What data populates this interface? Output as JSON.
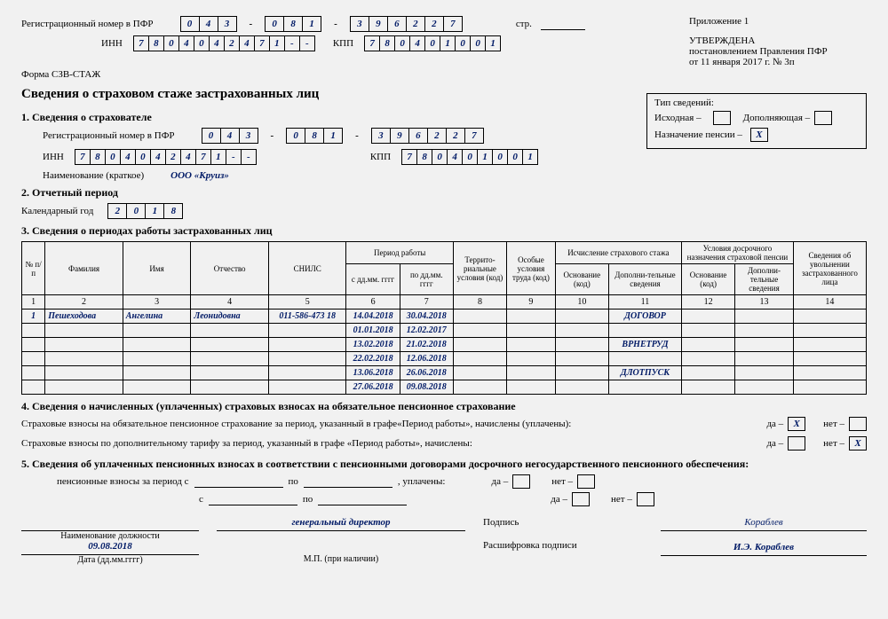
{
  "header": {
    "reg_label": "Регистрационный номер в ПФР",
    "reg1": [
      "0",
      "4",
      "3"
    ],
    "reg2": [
      "0",
      "8",
      "1"
    ],
    "reg3": [
      "3",
      "9",
      "6",
      "2",
      "2",
      "7"
    ],
    "page_label": "стр.",
    "inn_label": "ИНН",
    "inn": [
      "7",
      "8",
      "0",
      "4",
      "0",
      "4",
      "2",
      "4",
      "7",
      "1",
      "-",
      "-"
    ],
    "kpp_label": "КПП",
    "kpp": [
      "7",
      "8",
      "0",
      "4",
      "0",
      "1",
      "0",
      "0",
      "1"
    ],
    "appendix": "Приложение 1",
    "approved": "УТВЕРЖДЕНА",
    "decree": "постановлением Правления ПФР",
    "date": "от 11 января 2017 г. № 3п",
    "form_code": "Форма СЗВ-СТАЖ",
    "main_title": "Сведения о страховом стаже застрахованных лиц"
  },
  "section1": {
    "title": "1. Сведения о страхователе",
    "reg_label": "Регистрационный номер в ПФР",
    "reg1": [
      "0",
      "4",
      "3"
    ],
    "reg2": [
      "0",
      "8",
      "1"
    ],
    "reg3": [
      "3",
      "9",
      "6",
      "2",
      "2",
      "7"
    ],
    "inn_label": "ИНН",
    "inn": [
      "7",
      "8",
      "0",
      "4",
      "0",
      "4",
      "2",
      "4",
      "7",
      "1",
      "-",
      "-"
    ],
    "kpp_label": "КПП",
    "kpp": [
      "7",
      "8",
      "0",
      "4",
      "0",
      "1",
      "0",
      "0",
      "1"
    ],
    "name_label": "Наименование (краткое)",
    "name_value": "ООО «Круиз»"
  },
  "type_box": {
    "title": "Тип сведений:",
    "initial": "Исходная –",
    "supplement": "Дополняющая –",
    "pension": "Назначение пенсии –",
    "pension_mark": "X"
  },
  "section2": {
    "title": "2. Отчетный период",
    "year_label": "Календарный год",
    "year": [
      "2",
      "0",
      "1",
      "8"
    ]
  },
  "section3": {
    "title": "3. Сведения о периодах работы застрахованных лиц",
    "headers": {
      "num": "№ п/п",
      "surname": "Фамилия",
      "name": "Имя",
      "patronymic": "Отчество",
      "snils": "СНИЛС",
      "period": "Период работы",
      "from": "с дд.мм. гггг",
      "to": "по дд.мм. гггг",
      "terr": "Террито-риальные условия (код)",
      "special": "Особые условия труда (код)",
      "insurance": "Исчисление страхового стажа",
      "basis": "Основание (код)",
      "addinfo": "Дополни-тельные сведения",
      "early": "Условия досрочного назначения страховой пенсии",
      "basis2": "Основание (код)",
      "addinfo2": "Дополни-тельные сведения",
      "dismiss": "Сведения об увольнении застрахованного лица"
    },
    "colnums": [
      "1",
      "2",
      "3",
      "4",
      "5",
      "6",
      "7",
      "8",
      "9",
      "10",
      "11",
      "12",
      "13",
      "14"
    ],
    "rows": [
      {
        "n": "1",
        "fam": "Пешеходова",
        "im": "Ангелина",
        "ot": "Леонидовна",
        "snils": "011-586-473 18",
        "from": "14.04.2018",
        "to": "30.04.2018",
        "add": "ДОГОВОР"
      },
      {
        "from": "01.01.2018",
        "to": "12.02.2017"
      },
      {
        "from": "13.02.2018",
        "to": "21.02.2018",
        "add": "ВРНЕТРУД"
      },
      {
        "from": "22.02.2018",
        "to": "12.06.2018"
      },
      {
        "from": "13.06.2018",
        "to": "26.06.2018",
        "add": "ДЛОТПУСК"
      },
      {
        "from": "27.06.2018",
        "to": "09.08.2018"
      }
    ]
  },
  "section4": {
    "title": "4. Сведения о начисленных (уплаченных) страховых взносах на обязательное пенсионное страхование",
    "line1": "Страховые взносы на обязательное пенсионное страхование за период, указанный в графе«Период работы», начислены (уплачены):",
    "line2": "Страховые взносы по дополнительному тарифу за период, указанный в графе «Период работы», начислены:",
    "yes": "да –",
    "no": "нет –",
    "mark1_yes": "X",
    "mark2_no": "X"
  },
  "section5": {
    "title": "5. Сведения об уплаченных пенсионных взносах в соответствии с пенсионными договорами досрочного негосударственного пенсионного обеспечения:",
    "line": "пенсионные взносы за период с",
    "po": "по",
    "po2": "по",
    "s2": "с",
    "paid": ", уплачены:",
    "yes": "да –",
    "no": "нет –"
  },
  "footer": {
    "position_label": "Наименование должности",
    "position": "генеральный директор",
    "sign_label": "Подпись",
    "sign": "Кораблев",
    "date_label": "Дата (дд.мм.гггг)",
    "date": "09.08.2018",
    "stamp": "М.П. (при наличии)",
    "decode_label": "Расшифровка подписи",
    "decode": "И.Э. Кораблев"
  }
}
